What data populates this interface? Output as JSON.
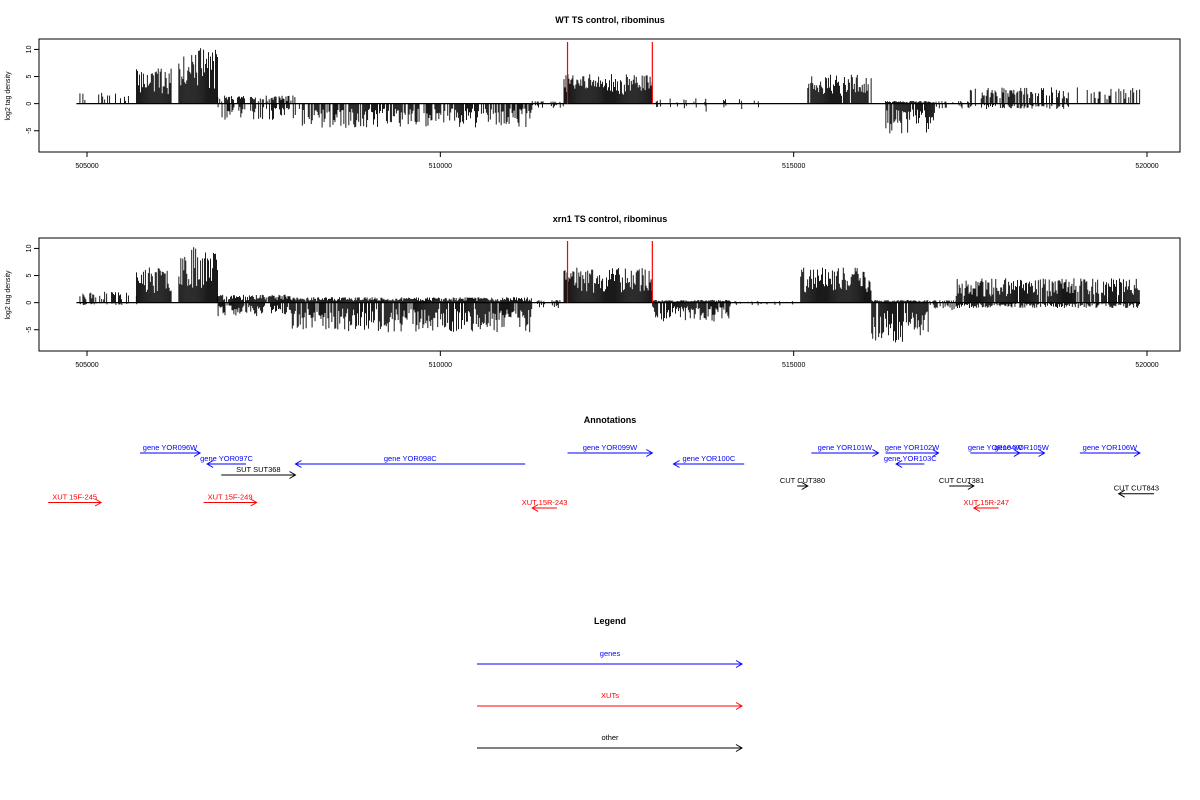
{
  "chart_data": [
    {
      "type": "bar",
      "title": "WT TS control, ribominus",
      "ylabel": "log2 tag density",
      "xlabel": "",
      "xlim": [
        504850,
        519900
      ],
      "ylim": [
        -8,
        11
      ],
      "xticks": [
        505000,
        510000,
        515000,
        520000
      ],
      "yticks": [
        -5,
        0,
        5,
        10
      ],
      "marker_lines": [
        511800,
        513000
      ],
      "marker_color": "#ff0000",
      "data_regions": [
        {
          "x": [
            504900,
            505700
          ],
          "pos_max": 2,
          "neg_max": 0,
          "density": 0.3
        },
        {
          "x": [
            505700,
            506200
          ],
          "pos_max": 6.5,
          "neg_max": 0,
          "density": 1
        },
        {
          "x": [
            506300,
            506850
          ],
          "pos_max": 10.3,
          "neg_max": 0,
          "density": 1
        },
        {
          "x": [
            506850,
            508000
          ],
          "pos_max": 1.5,
          "neg_max": -3,
          "density": 0.6
        },
        {
          "x": [
            508000,
            511300
          ],
          "pos_max": 0,
          "neg_max": -4.5,
          "density": 0.9
        },
        {
          "x": [
            511300,
            511750
          ],
          "pos_max": 0.5,
          "neg_max": -0.8,
          "density": 0.2
        },
        {
          "x": [
            511750,
            513000
          ],
          "pos_max": 5.5,
          "neg_max": 0,
          "density": 1
        },
        {
          "x": [
            513000,
            514500
          ],
          "pos_max": 1,
          "neg_max": -1.5,
          "density": 0.2
        },
        {
          "x": [
            515200,
            516100
          ],
          "pos_max": 5.5,
          "neg_max": 0,
          "density": 0.9
        },
        {
          "x": [
            516300,
            517000
          ],
          "pos_max": 0.5,
          "neg_max": -5.5,
          "density": 1
        },
        {
          "x": [
            517000,
            517500
          ],
          "pos_max": 0.5,
          "neg_max": -1,
          "density": 0.3
        },
        {
          "x": [
            517500,
            518900
          ],
          "pos_max": 3,
          "neg_max": -1,
          "density": 0.6
        },
        {
          "x": [
            519000,
            519900
          ],
          "pos_max": 3,
          "neg_max": 0,
          "density": 0.4
        }
      ]
    },
    {
      "type": "bar",
      "title": "xrn1 TS control, ribominus",
      "ylabel": "log2 tag density",
      "xlabel": "",
      "xlim": [
        504850,
        519900
      ],
      "ylim": [
        -8,
        11
      ],
      "xticks": [
        505000,
        510000,
        515000,
        520000
      ],
      "yticks": [
        -5,
        0,
        5,
        10
      ],
      "marker_lines": [
        511800,
        513000
      ],
      "marker_color": "#ff0000",
      "data_regions": [
        {
          "x": [
            504900,
            505700
          ],
          "pos_max": 2,
          "neg_max": -0.5,
          "density": 0.5
        },
        {
          "x": [
            505700,
            506200
          ],
          "pos_max": 6.5,
          "neg_max": 0,
          "density": 1
        },
        {
          "x": [
            506300,
            506850
          ],
          "pos_max": 10.3,
          "neg_max": 0,
          "density": 1
        },
        {
          "x": [
            506850,
            507900
          ],
          "pos_max": 1.5,
          "neg_max": -2.5,
          "density": 0.9
        },
        {
          "x": [
            507900,
            511300
          ],
          "pos_max": 1,
          "neg_max": -5.5,
          "density": 1
        },
        {
          "x": [
            511300,
            511750
          ],
          "pos_max": 0.5,
          "neg_max": -1,
          "density": 0.4
        },
        {
          "x": [
            511750,
            513000
          ],
          "pos_max": 6.5,
          "neg_max": 0,
          "density": 1
        },
        {
          "x": [
            513000,
            514100
          ],
          "pos_max": 0.5,
          "neg_max": -3.5,
          "density": 1
        },
        {
          "x": [
            514100,
            515000
          ],
          "pos_max": 0.3,
          "neg_max": -0.5,
          "density": 0.2
        },
        {
          "x": [
            515100,
            516100
          ],
          "pos_max": 6.5,
          "neg_max": 0,
          "density": 1
        },
        {
          "x": [
            516100,
            516900
          ],
          "pos_max": 0.5,
          "neg_max": -7.5,
          "density": 1
        },
        {
          "x": [
            516900,
            517300
          ],
          "pos_max": 0.5,
          "neg_max": -1.5,
          "density": 0.5
        },
        {
          "x": [
            517300,
            519900
          ],
          "pos_max": 4.5,
          "neg_max": -1,
          "density": 0.9
        }
      ]
    }
  ],
  "annotations": {
    "title": "Annotations",
    "features": [
      {
        "label": "gene YOR096W",
        "start": 505750,
        "end": 506600,
        "strand": "+",
        "category": "genes",
        "row": 0
      },
      {
        "label": "gene YOR097C",
        "start": 506700,
        "end": 507250,
        "strand": "-",
        "category": "genes",
        "row": 1
      },
      {
        "label": "gene YOR098C",
        "start": 507950,
        "end": 511200,
        "strand": "-",
        "category": "genes",
        "row": 1
      },
      {
        "label": "gene YOR099W",
        "start": 511800,
        "end": 513000,
        "strand": "+",
        "category": "genes",
        "row": 0
      },
      {
        "label": "gene YOR100C",
        "start": 513300,
        "end": 514300,
        "strand": "-",
        "category": "genes",
        "row": 1
      },
      {
        "label": "gene YOR101W",
        "start": 515250,
        "end": 516200,
        "strand": "+",
        "category": "genes",
        "row": 0
      },
      {
        "label": "gene YOR102W",
        "start": 516300,
        "end": 517050,
        "strand": "+",
        "category": "genes",
        "row": 0
      },
      {
        "label": "gene YOR103C",
        "start": 516450,
        "end": 516850,
        "strand": "-",
        "category": "genes",
        "row": 1
      },
      {
        "label": "gene YOR104W",
        "start": 517500,
        "end": 518200,
        "strand": "+",
        "category": "genes",
        "row": 0
      },
      {
        "label": "gene YOR105W",
        "start": 517900,
        "end": 518550,
        "strand": "+",
        "category": "genes",
        "row": 0
      },
      {
        "label": "gene YOR106W",
        "start": 519050,
        "end": 519900,
        "strand": "+",
        "category": "genes",
        "row": 0
      },
      {
        "label": "SUT SUT368",
        "start": 506900,
        "end": 507950,
        "strand": "+",
        "category": "other",
        "row": 2
      },
      {
        "label": "CUT CUT380",
        "start": 515050,
        "end": 515200,
        "strand": "+",
        "category": "other",
        "row": 3
      },
      {
        "label": "CUT CUT381",
        "start": 517200,
        "end": 517550,
        "strand": "+",
        "category": "other",
        "row": 3
      },
      {
        "label": "CUT CUT843",
        "start": 519600,
        "end": 520100,
        "strand": "-",
        "category": "other",
        "row": 3.7
      },
      {
        "label": "XUT 15F-245",
        "start": 504450,
        "end": 505200,
        "strand": "+",
        "category": "XUTs",
        "row": 4.5
      },
      {
        "label": "XUT 15F-249",
        "start": 506650,
        "end": 507400,
        "strand": "+",
        "category": "XUTs",
        "row": 4.5
      },
      {
        "label": "XUT 15R-243",
        "start": 511300,
        "end": 511650,
        "strand": "-",
        "category": "XUTs",
        "row": 5
      },
      {
        "label": "XUT 15R-247",
        "start": 517550,
        "end": 517900,
        "strand": "-",
        "category": "XUTs",
        "row": 5
      }
    ]
  },
  "legend": {
    "title": "Legend",
    "items": [
      {
        "label": "genes",
        "color": "#0000ff"
      },
      {
        "label": "XUTs",
        "color": "#ff0000"
      },
      {
        "label": "other",
        "color": "#000000"
      }
    ]
  }
}
